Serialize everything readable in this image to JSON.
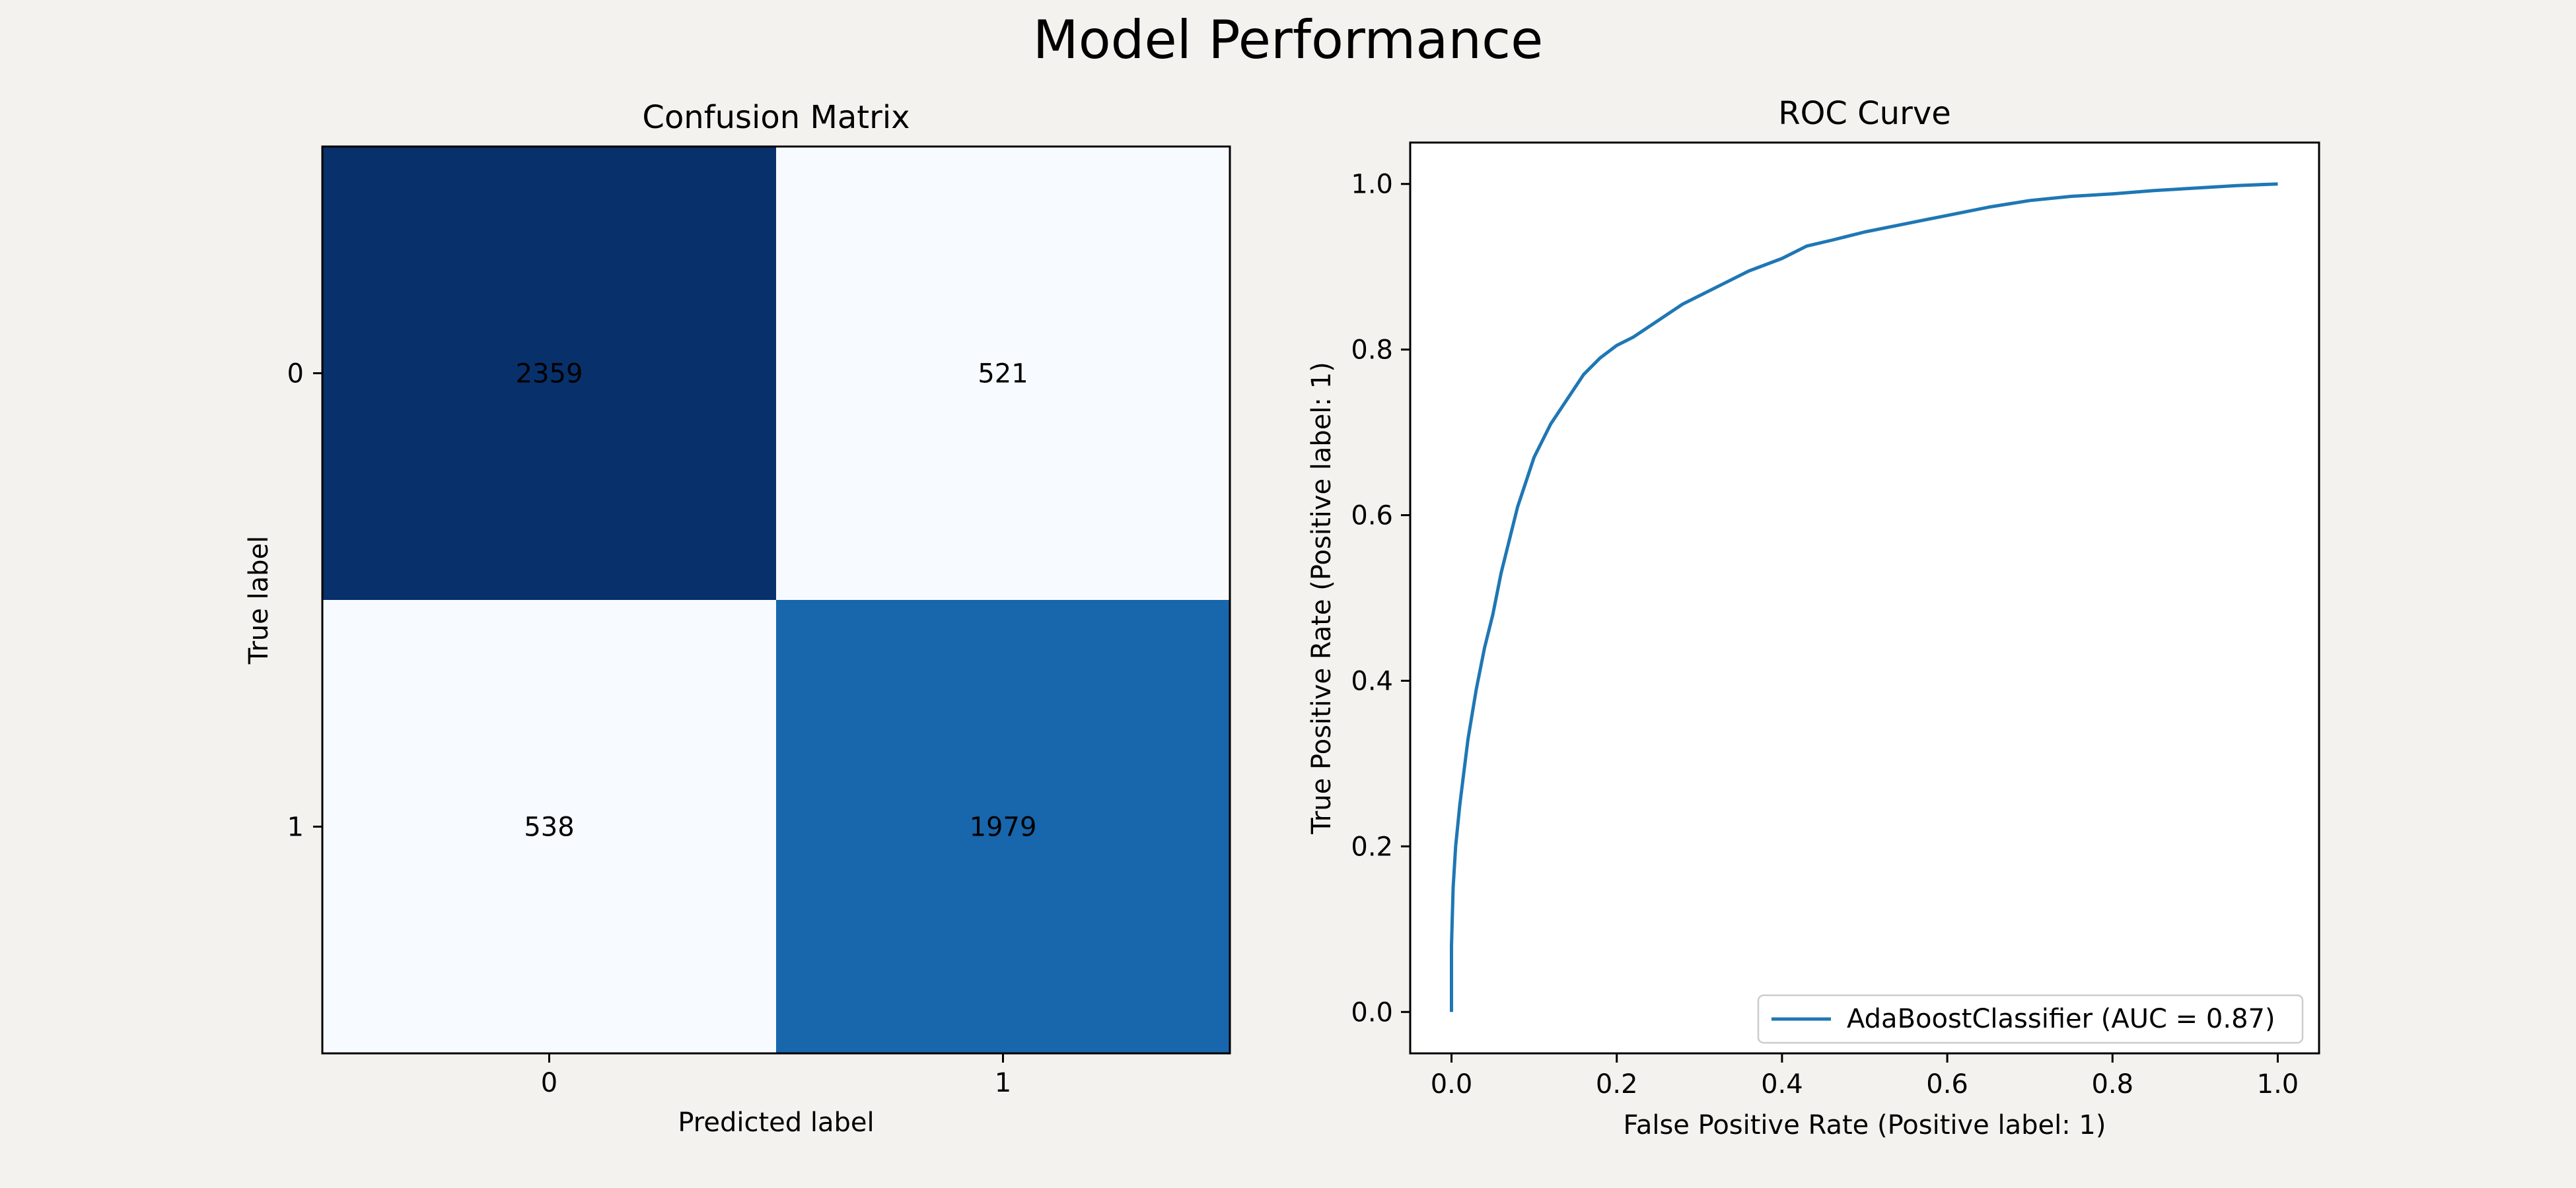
{
  "figure": {
    "title": "Model Performance",
    "background": "#f3f2ee"
  },
  "chart_data": [
    {
      "type": "heatmap",
      "title": "Confusion Matrix",
      "xlabel": "Predicted label",
      "ylabel": "True label",
      "x_categories": [
        "0",
        "1"
      ],
      "y_categories": [
        "0",
        "1"
      ],
      "values": [
        [
          2359,
          521
        ],
        [
          538,
          1979
        ]
      ],
      "colormap": "Blues",
      "value_range": [
        521,
        2359
      ],
      "colors": {
        "dark": "#08306b",
        "light": "#f7fbff",
        "mid": "#1866ac"
      },
      "text_colors": {
        "on_dark": "#f7fbff",
        "on_light": "#08306b"
      },
      "grid": false,
      "legend": "none"
    },
    {
      "type": "line",
      "title": "ROC Curve",
      "xlabel": "False Positive Rate (Positive label: 1)",
      "ylabel": "True Positive Rate (Positive label: 1)",
      "xlim": [
        -0.05,
        1.05
      ],
      "ylim": [
        -0.05,
        1.05
      ],
      "xticks": [
        "0.0",
        "0.2",
        "0.4",
        "0.6",
        "0.8",
        "1.0"
      ],
      "yticks": [
        "0.0",
        "0.2",
        "0.4",
        "0.6",
        "0.8",
        "1.0"
      ],
      "grid": false,
      "legend_position": "lower-right",
      "series": [
        {
          "name": "AdaBoostClassifier (AUC = 0.87)",
          "color": "#1f77b4",
          "x": [
            0.0,
            0.0,
            0.002,
            0.005,
            0.01,
            0.015,
            0.02,
            0.03,
            0.04,
            0.05,
            0.06,
            0.07,
            0.08,
            0.09,
            0.1,
            0.12,
            0.14,
            0.16,
            0.18,
            0.2,
            0.22,
            0.25,
            0.28,
            0.3,
            0.33,
            0.36,
            0.4,
            0.43,
            0.46,
            0.5,
            0.55,
            0.6,
            0.65,
            0.7,
            0.75,
            0.8,
            0.85,
            0.9,
            0.95,
            1.0
          ],
          "y": [
            0.0,
            0.08,
            0.15,
            0.2,
            0.25,
            0.29,
            0.33,
            0.39,
            0.44,
            0.48,
            0.53,
            0.57,
            0.61,
            0.64,
            0.67,
            0.71,
            0.74,
            0.77,
            0.79,
            0.805,
            0.815,
            0.835,
            0.855,
            0.865,
            0.88,
            0.895,
            0.91,
            0.925,
            0.932,
            0.942,
            0.952,
            0.962,
            0.972,
            0.98,
            0.985,
            0.988,
            0.992,
            0.995,
            0.998,
            1.0
          ]
        }
      ]
    }
  ]
}
